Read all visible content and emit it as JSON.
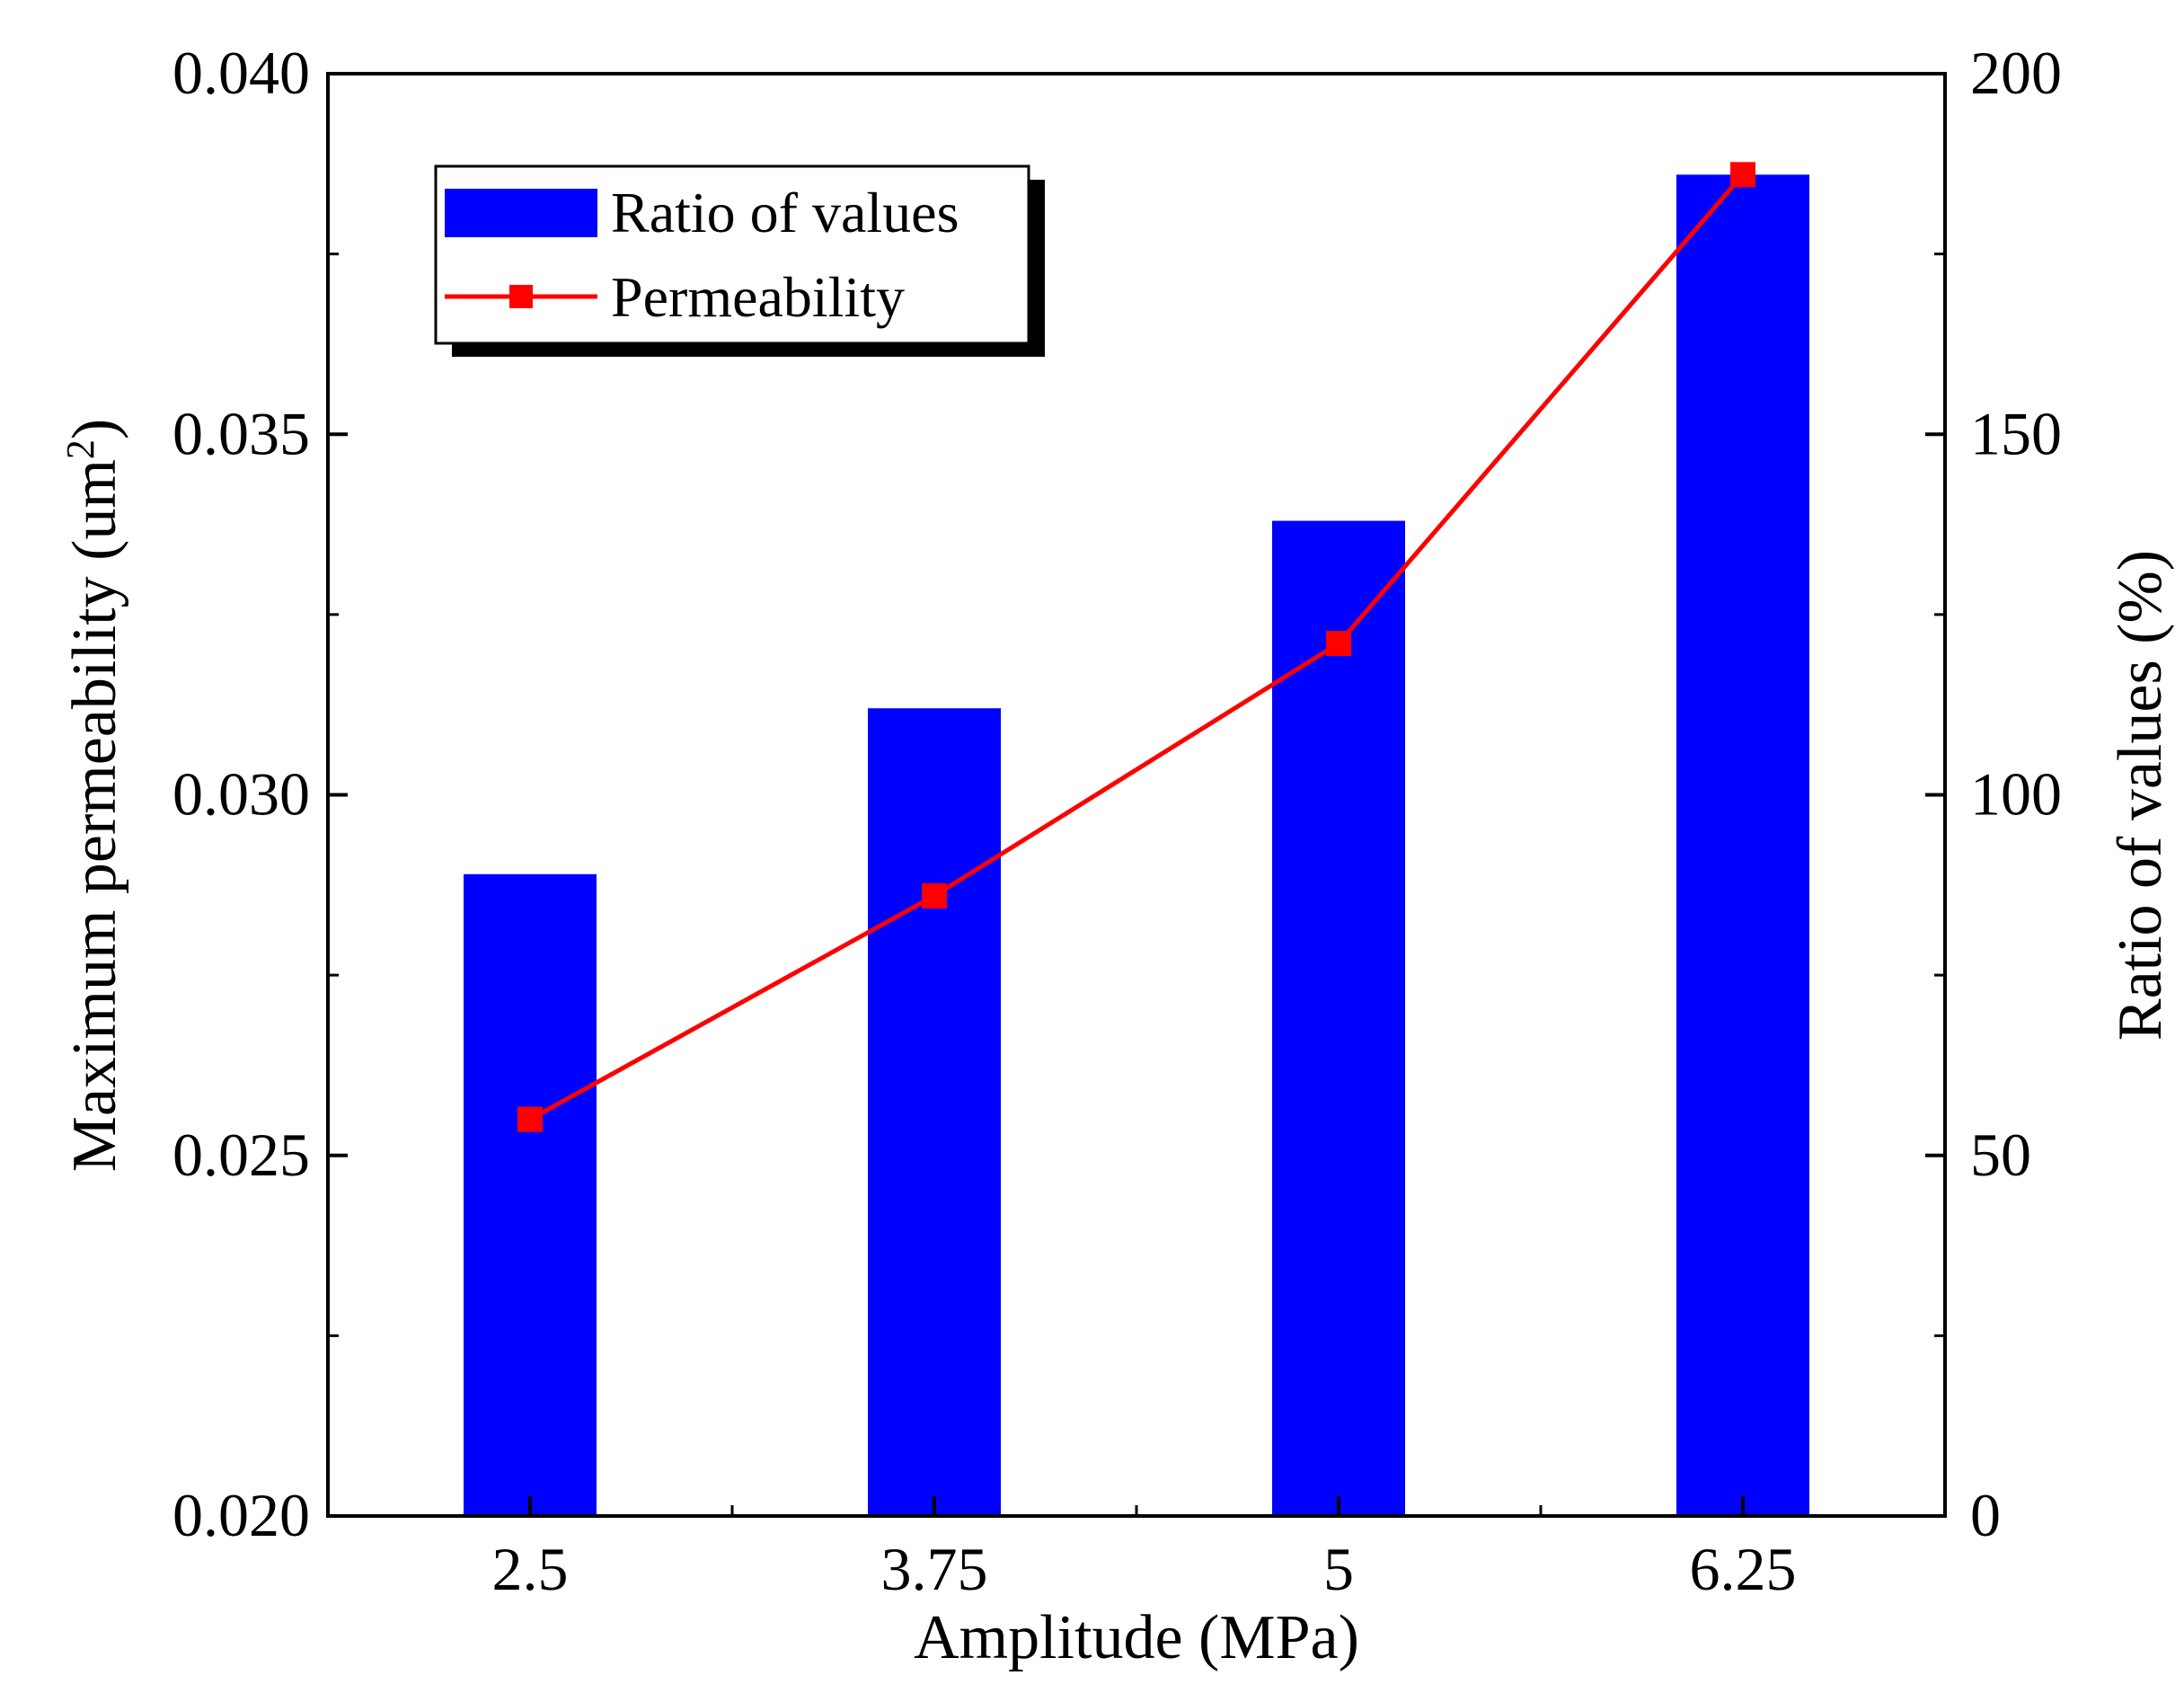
{
  "chart_data": {
    "type": "bar+line",
    "categories": [
      "2.5",
      "3.75",
      "5",
      "6.25"
    ],
    "xlabel": "Amplitude (MPa)",
    "ylabel_left": "Maximum permeability (um",
    "ylabel_left_sup": "2",
    "ylabel_left_end": ")",
    "ylabel_right": "Ratio of values (%)",
    "ylim_left": [
      0.02,
      0.04
    ],
    "ylim_right": [
      0,
      200
    ],
    "yticks_left": [
      "0.020",
      "0.025",
      "0.030",
      "0.035",
      "0.040"
    ],
    "yticks_right": [
      "0",
      "50",
      "100",
      "150",
      "200"
    ],
    "series": [
      {
        "name": "Ratio of values",
        "type": "bar",
        "axis": "right",
        "color": "#0000FF",
        "values": [
          89,
          112,
          138,
          186
        ]
      },
      {
        "name": "Permeability",
        "type": "line",
        "axis": "left",
        "color": "#FF0000",
        "marker": "square",
        "values": [
          0.0255,
          0.0286,
          0.0321,
          0.0386
        ]
      }
    ],
    "legend": [
      "Ratio of values",
      "Permeability"
    ],
    "legend_position": "top-left",
    "grid": false
  }
}
